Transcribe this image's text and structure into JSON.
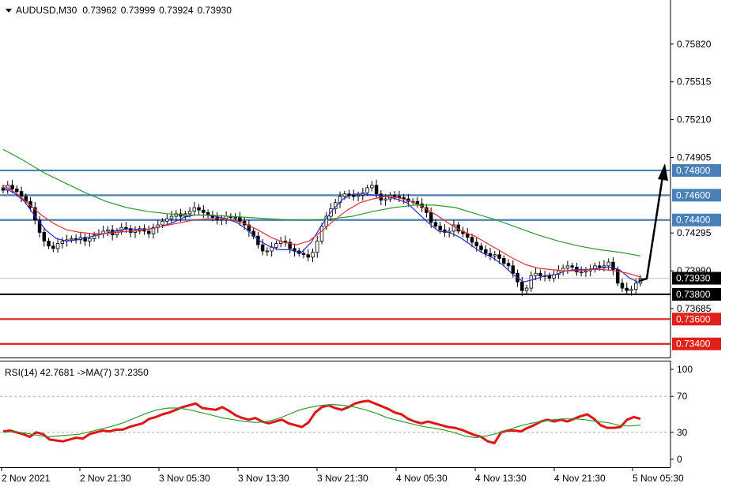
{
  "header": {
    "symbol": "AUDUSD,M30",
    "open": "0.73962",
    "high": "0.73999",
    "low": "0.73924",
    "close": "0.73930"
  },
  "chart_data": [
    {
      "type": "candlestick",
      "title": "AUDUSD,M30  0.73962 0.73999 0.73924 0.73930",
      "y_ticks": [
        "0.75820",
        "0.75515",
        "0.75210",
        "0.74905",
        "0.74295",
        "0.73990",
        "0.73685"
      ],
      "ylim": [
        0.7329,
        0.7601
      ],
      "x_ticks": [
        "2 Nov 2021",
        "2 Nov 21:30",
        "3 Nov 05:30",
        "3 Nov 13:30",
        "3 Nov 21:30",
        "4 Nov 05:30",
        "4 Nov 13:30",
        "4 Nov 21:30",
        "5 Nov 05:30"
      ],
      "levels": [
        {
          "value": 0.748,
          "label": "0.74800",
          "color": "#4a80b8"
        },
        {
          "value": 0.746,
          "label": "0.74600",
          "color": "#4a80b8"
        },
        {
          "value": 0.744,
          "label": "0.74400",
          "color": "#4a80b8"
        },
        {
          "value": 0.738,
          "label": "0.73800",
          "color": "#000000"
        },
        {
          "value": 0.736,
          "label": "0.73600",
          "color": "#e0201a"
        },
        {
          "value": 0.734,
          "label": "0.73400",
          "color": "#e0201a"
        }
      ],
      "current_price": {
        "value": 0.7393,
        "label": "0.73930",
        "color": "#000000"
      },
      "closes": [
        0.7464,
        0.7468,
        0.7465,
        0.7463,
        0.7459,
        0.7455,
        0.745,
        0.744,
        0.743,
        0.7423,
        0.7419,
        0.7417,
        0.7421,
        0.7423,
        0.7424,
        0.7425,
        0.7424,
        0.7426,
        0.7423,
        0.7425,
        0.7428,
        0.7429,
        0.7431,
        0.7432,
        0.7428,
        0.7431,
        0.7434,
        0.7433,
        0.743,
        0.7431,
        0.7433,
        0.7431,
        0.7429,
        0.7434,
        0.7436,
        0.7439,
        0.7441,
        0.7443,
        0.7445,
        0.7443,
        0.7445,
        0.7447,
        0.745,
        0.7448,
        0.7446,
        0.7444,
        0.7442,
        0.744,
        0.7441,
        0.7443,
        0.7442,
        0.7442,
        0.7439,
        0.7436,
        0.7431,
        0.7427,
        0.742,
        0.7415,
        0.7415,
        0.7418,
        0.7421,
        0.7423,
        0.7422,
        0.7417,
        0.7415,
        0.7413,
        0.7412,
        0.741,
        0.7414,
        0.7423,
        0.7435,
        0.7443,
        0.7449,
        0.7454,
        0.7459,
        0.7461,
        0.746,
        0.7459,
        0.746,
        0.7462,
        0.7466,
        0.7468,
        0.7461,
        0.7456,
        0.7457,
        0.746,
        0.7459,
        0.7458,
        0.7457,
        0.7455,
        0.7455,
        0.7453,
        0.745,
        0.7446,
        0.7438,
        0.7435,
        0.7432,
        0.743,
        0.7431,
        0.7436,
        0.7431,
        0.7429,
        0.7426,
        0.7422,
        0.7419,
        0.7416,
        0.7413,
        0.7411,
        0.7412,
        0.7409,
        0.7405,
        0.7403,
        0.7397,
        0.739,
        0.7383,
        0.7385,
        0.7395,
        0.7397,
        0.7395,
        0.7395,
        0.7393,
        0.7396,
        0.7399,
        0.7401,
        0.7403,
        0.7402,
        0.7398,
        0.7398,
        0.7399,
        0.74,
        0.7403,
        0.7402,
        0.7403,
        0.7406,
        0.74,
        0.7389,
        0.7385,
        0.7383,
        0.7384,
        0.7389,
        0.7393
      ],
      "ma_series": [
        {
          "color": "#2a2ad0",
          "values": [
            0.7466,
            0.7462,
            0.7455,
            0.7443,
            0.7432,
            0.7425,
            0.7423,
            0.7424,
            0.7426,
            0.7428,
            0.743,
            0.7432,
            0.7433,
            0.7432,
            0.7433,
            0.7435,
            0.7438,
            0.7442,
            0.7444,
            0.7444,
            0.7443,
            0.7441,
            0.7438,
            0.7432,
            0.7424,
            0.7419,
            0.7416,
            0.7416,
            0.7413,
            0.7422,
            0.7436,
            0.7448,
            0.7457,
            0.7461,
            0.7461,
            0.746,
            0.7459,
            0.7457,
            0.7454,
            0.7446,
            0.7438,
            0.7431,
            0.743,
            0.7426,
            0.742,
            0.7414,
            0.741,
            0.7404,
            0.7396,
            0.739,
            0.7392,
            0.7395,
            0.7396,
            0.7399,
            0.74,
            0.74,
            0.7401,
            0.7402,
            0.74,
            0.7393,
            0.7389
          ]
        },
        {
          "color": "#e63030",
          "values": [
            0.7468,
            0.7462,
            0.7453,
            0.7444,
            0.7437,
            0.7432,
            0.743,
            0.7429,
            0.7429,
            0.743,
            0.7431,
            0.7432,
            0.7434,
            0.7436,
            0.7438,
            0.744,
            0.7441,
            0.7441,
            0.744,
            0.7437,
            0.7432,
            0.7426,
            0.7422,
            0.742,
            0.7423,
            0.7431,
            0.744,
            0.7448,
            0.7454,
            0.7457,
            0.7459,
            0.7458,
            0.7455,
            0.745,
            0.7444,
            0.7437,
            0.7431,
            0.7427,
            0.7421,
            0.7415,
            0.7409,
            0.7404,
            0.7401,
            0.74,
            0.7399,
            0.7399,
            0.74,
            0.74,
            0.7399,
            0.7397,
            0.7394
          ]
        },
        {
          "color": "#2e9a2e",
          "values": [
            0.7497,
            0.7488,
            0.7478,
            0.747,
            0.7462,
            0.7455,
            0.745,
            0.7447,
            0.7445,
            0.7444,
            0.7444,
            0.7443,
            0.7442,
            0.7441,
            0.744,
            0.744,
            0.7441,
            0.7443,
            0.7447,
            0.745,
            0.7452,
            0.7452,
            0.745,
            0.7445,
            0.744,
            0.7434,
            0.7428,
            0.7423,
            0.7419,
            0.7416,
            0.7414,
            0.7411
          ]
        }
      ]
    },
    {
      "type": "line",
      "title": "RSI(14) 42.7681  ->MA(7) 37.2350",
      "y_ticks": [
        "100",
        "70",
        "30",
        "0"
      ],
      "ylim": [
        0,
        100
      ],
      "levels": [
        70,
        30
      ],
      "series": [
        {
          "name": "RSI(14)",
          "color": "#e01515",
          "values": [
            31,
            32,
            30,
            28,
            25,
            30,
            28,
            22,
            21,
            20,
            22,
            24,
            23,
            28,
            30,
            32,
            31,
            33,
            33,
            36,
            38,
            40,
            45,
            47,
            50,
            52,
            55,
            58,
            60,
            62,
            57,
            56,
            55,
            58,
            54,
            49,
            46,
            44,
            46,
            42,
            40,
            42,
            44,
            40,
            38,
            36,
            41,
            52,
            58,
            60,
            57,
            55,
            58,
            62,
            64,
            65,
            62,
            59,
            56,
            52,
            50,
            45,
            42,
            40,
            42,
            40,
            38,
            36,
            35,
            33,
            30,
            27,
            25,
            20,
            18,
            30,
            32,
            32,
            31,
            35,
            38,
            42,
            44,
            42,
            44,
            42,
            45,
            48,
            50,
            45,
            38,
            35,
            35,
            36,
            44,
            47,
            45
          ]
        },
        {
          "name": "MA(7)",
          "color": "#2e9a2e",
          "values": [
            30,
            31,
            29,
            27,
            25,
            26,
            27,
            28,
            31,
            34,
            37,
            41,
            46,
            51,
            55,
            57,
            57,
            55,
            52,
            49,
            46,
            44,
            42,
            41,
            42,
            45,
            50,
            55,
            58,
            60,
            61,
            60,
            58,
            55,
            51,
            46,
            43,
            40,
            37,
            35,
            33,
            30,
            26,
            24,
            26,
            29,
            33,
            37,
            40,
            42,
            44,
            45,
            45,
            44,
            42,
            41,
            38,
            37,
            38
          ]
        }
      ]
    }
  ]
}
